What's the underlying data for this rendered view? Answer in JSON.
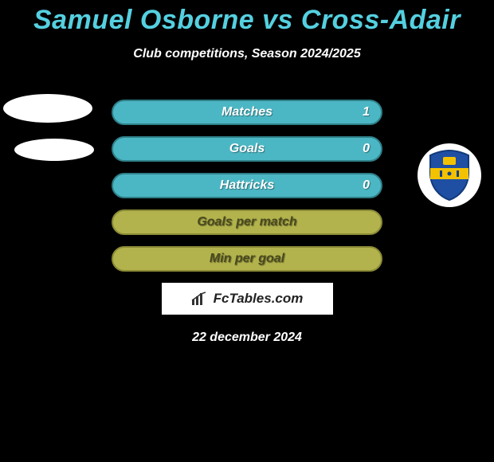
{
  "title": "Samuel Osborne vs Cross-Adair",
  "subtitle": "Club competitions, Season 2024/2025",
  "date": "22 december 2024",
  "logo_text": "FcTables.com",
  "palette": {
    "title_color": "#54d0e0",
    "bg": "#000000",
    "bar_teal_bg": "#4cb7c4",
    "bar_teal_border": "#2e7f88",
    "bar_teal_text": "#ffffff",
    "bar_olive_bg": "#b3b34d",
    "bar_olive_border": "#8a8a36",
    "bar_olive_text": "#4a4a1e"
  },
  "bars": [
    {
      "label": "Matches",
      "value": "1",
      "style": "teal"
    },
    {
      "label": "Goals",
      "value": "0",
      "style": "teal"
    },
    {
      "label": "Hattricks",
      "value": "0",
      "style": "teal"
    },
    {
      "label": "Goals per match",
      "value": "",
      "style": "olive"
    },
    {
      "label": "Min per goal",
      "value": "",
      "style": "olive"
    }
  ],
  "badge": {
    "shield_fill": "#1e4fa3",
    "shield_stroke": "#123a7a",
    "band_fill": "#f2c200",
    "inner_fill": "#144089"
  }
}
